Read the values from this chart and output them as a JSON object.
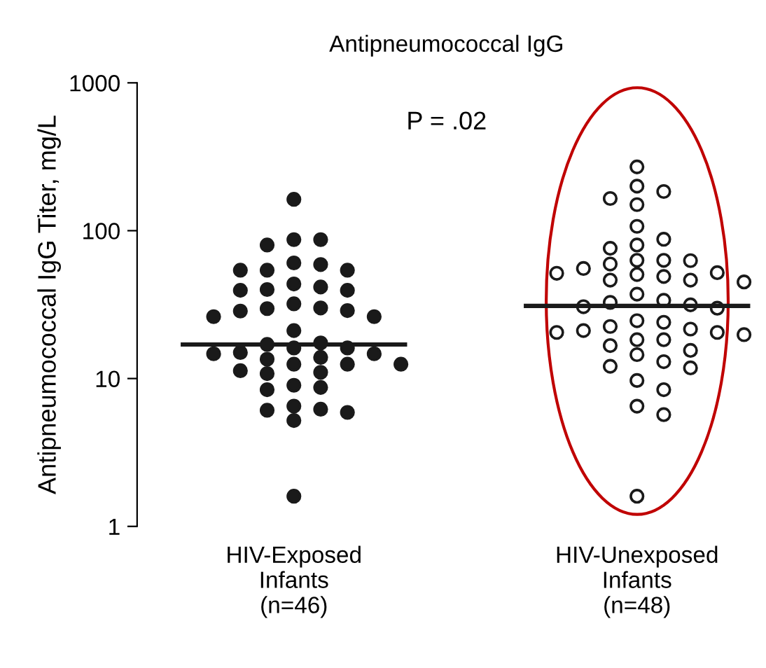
{
  "chart_data": {
    "type": "scatter",
    "title": "Antipneumococcal IgG",
    "ylabel": "Antipneumococcal IgG Titer, mg/L",
    "categories": [
      "HIV-Exposed\nInfants\n(n=46)",
      "HIV-Unexposed\nInfants\n(n=48)"
    ],
    "log": true,
    "ylim": [
      1,
      1000
    ],
    "yticks": [
      1,
      10,
      100,
      1000
    ],
    "grid": false,
    "annotations": [
      "P = .02"
    ],
    "series": [
      {
        "color": "#1a1a1a",
        "marker": "circle",
        "x": [
          "HIV-Exposed\nInfants\n(n=46)",
          "HIV-Exposed\nInfants\n(n=46)",
          "HIV-Exposed\nInfants\n(n=46)",
          "HIV-Exposed\nInfants\n(n=46)",
          "HIV-Exposed\nInfants\n(n=46)",
          "HIV-Exposed\nInfants\n(n=46)",
          "HIV-Exposed\nInfants\n(n=46)",
          "HIV-Exposed\nInfants\n(n=46)",
          "HIV-Exposed\nInfants\n(n=46)",
          "HIV-Exposed\nInfants\n(n=46)",
          "HIV-Exposed\nInfants\n(n=46)",
          "HIV-Exposed\nInfants\n(n=46)",
          "HIV-Exposed\nInfants\n(n=46)",
          "HIV-Exposed\nInfants\n(n=46)",
          "HIV-Exposed\nInfants\n(n=46)",
          "HIV-Exposed\nInfants\n(n=46)",
          "HIV-Exposed\nInfants\n(n=46)",
          "HIV-Exposed\nInfants\n(n=46)",
          "HIV-Exposed\nInfants\n(n=46)",
          "HIV-Exposed\nInfants\n(n=46)",
          "HIV-Exposed\nInfants\n(n=46)",
          "HIV-Exposed\nInfants\n(n=46)",
          "HIV-Exposed\nInfants\n(n=46)",
          "HIV-Exposed\nInfants\n(n=46)",
          "HIV-Exposed\nInfants\n(n=46)",
          "HIV-Exposed\nInfants\n(n=46)",
          "HIV-Exposed\nInfants\n(n=46)",
          "HIV-Exposed\nInfants\n(n=46)",
          "HIV-Exposed\nInfants\n(n=46)",
          "HIV-Exposed\nInfants\n(n=46)",
          "HIV-Exposed\nInfants\n(n=46)",
          "HIV-Exposed\nInfants\n(n=46)",
          "HIV-Exposed\nInfants\n(n=46)",
          "HIV-Exposed\nInfants\n(n=46)",
          "HIV-Exposed\nInfants\n(n=46)",
          "HIV-Exposed\nInfants\n(n=46)",
          "HIV-Exposed\nInfants\n(n=46)",
          "HIV-Exposed\nInfants\n(n=46)",
          "HIV-Exposed\nInfants\n(n=46)",
          "HIV-Exposed\nInfants\n(n=46)",
          "HIV-Exposed\nInfants\n(n=46)",
          "HIV-Exposed\nInfants\n(n=46)",
          "HIV-Exposed\nInfants\n(n=46)",
          "HIV-Exposed\nInfants\n(n=46)",
          "HIV-Exposed\nInfants\n(n=46)",
          "HIV-Exposed\nInfants\n(n=46)"
        ],
        "values": [
          163,
          87,
          87,
          80,
          60.5,
          54,
          54,
          54,
          59,
          43.6,
          39.5,
          39.5,
          40,
          41.6,
          30,
          28.8,
          26.2,
          32,
          26.2,
          28.6,
          29.7,
          21.1,
          17.0,
          17.4,
          16.1,
          16.1,
          14.7,
          13.9,
          13.5,
          14.7,
          15.0,
          12.5,
          12.5,
          12.5,
          11.0,
          10.8,
          11.3,
          9.0,
          8.4,
          8.7,
          6.2,
          5.9,
          5.2,
          6.1,
          6.5,
          1.6
        ]
      },
      {
        "color": "#1a1a1a",
        "marker": "circle",
        "x": [
          "HIV-Unexposed\nInfants\n(n=48)",
          "HIV-Unexposed\nInfants\n(n=48)",
          "HIV-Unexposed\nInfants\n(n=48)",
          "HIV-Unexposed\nInfants\n(n=48)",
          "HIV-Unexposed\nInfants\n(n=48)",
          "HIV-Unexposed\nInfants\n(n=48)",
          "HIV-Unexposed\nInfants\n(n=48)",
          "HIV-Unexposed\nInfants\n(n=48)",
          "HIV-Unexposed\nInfants\n(n=48)",
          "HIV-Unexposed\nInfants\n(n=48)",
          "HIV-Unexposed\nInfants\n(n=48)",
          "HIV-Unexposed\nInfants\n(n=48)",
          "HIV-Unexposed\nInfants\n(n=48)",
          "HIV-Unexposed\nInfants\n(n=48)",
          "HIV-Unexposed\nInfants\n(n=48)",
          "HIV-Unexposed\nInfants\n(n=48)",
          "HIV-Unexposed\nInfants\n(n=48)",
          "HIV-Unexposed\nInfants\n(n=48)",
          "HIV-Unexposed\nInfants\n(n=48)",
          "HIV-Unexposed\nInfants\n(n=48)",
          "HIV-Unexposed\nInfants\n(n=48)",
          "HIV-Unexposed\nInfants\n(n=48)",
          "HIV-Unexposed\nInfants\n(n=48)",
          "HIV-Unexposed\nInfants\n(n=48)",
          "HIV-Unexposed\nInfants\n(n=48)",
          "HIV-Unexposed\nInfants\n(n=48)",
          "HIV-Unexposed\nInfants\n(n=48)",
          "HIV-Unexposed\nInfants\n(n=48)",
          "HIV-Unexposed\nInfants\n(n=48)",
          "HIV-Unexposed\nInfants\n(n=48)",
          "HIV-Unexposed\nInfants\n(n=48)",
          "HIV-Unexposed\nInfants\n(n=48)",
          "HIV-Unexposed\nInfants\n(n=48)",
          "HIV-Unexposed\nInfants\n(n=48)",
          "HIV-Unexposed\nInfants\n(n=48)",
          "HIV-Unexposed\nInfants\n(n=48)",
          "HIV-Unexposed\nInfants\n(n=48)",
          "HIV-Unexposed\nInfants\n(n=48)",
          "HIV-Unexposed\nInfants\n(n=48)",
          "HIV-Unexposed\nInfants\n(n=48)",
          "HIV-Unexposed\nInfants\n(n=48)",
          "HIV-Unexposed\nInfants\n(n=48)",
          "HIV-Unexposed\nInfants\n(n=48)",
          "HIV-Unexposed\nInfants\n(n=48)",
          "HIV-Unexposed\nInfants\n(n=48)",
          "HIV-Unexposed\nInfants\n(n=48)",
          "HIV-Unexposed\nInfants\n(n=48)",
          "HIV-Unexposed\nInfants\n(n=48)"
        ],
        "values": [
          270,
          200,
          184,
          165,
          150,
          107,
          87.5,
          76,
          80,
          63,
          59.5,
          62.7,
          63,
          51.5,
          55.5,
          50.5,
          46.3,
          45,
          46.3,
          49,
          52,
          37.2,
          33.8,
          31.5,
          29.9,
          30.6,
          32.7,
          21.1,
          20.5,
          18.3,
          22.5,
          24,
          21.6,
          24.6,
          18.3,
          19.8,
          20.5,
          14.5,
          16.7,
          15.5,
          13.0,
          12.1,
          11.8,
          9.7,
          8.4,
          6.5,
          5.7,
          1.6
        ]
      }
    ],
    "ref_lines": [
      {
        "axis": "y",
        "value": 17,
        "color": "#1a1a1a"
      },
      {
        "axis": "y",
        "value": 31,
        "color": "#1a1a1a"
      }
    ]
  }
}
